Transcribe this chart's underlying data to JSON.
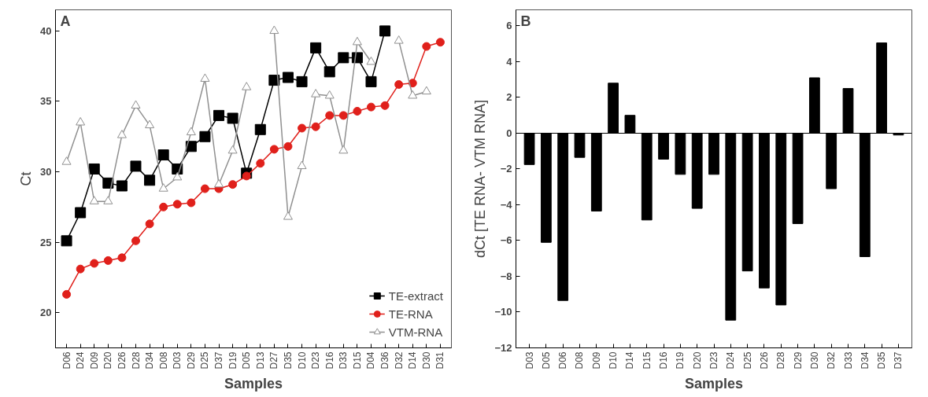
{
  "chart_data": [
    {
      "type": "line",
      "xlabel": "Samples",
      "ylabel": "Ct",
      "annotations": [
        "A"
      ],
      "categories": [
        "D06",
        "D24",
        "D09",
        "D20",
        "D26",
        "D28",
        "D34",
        "D08",
        "D03",
        "D29",
        "D25",
        "D37",
        "D19",
        "D05",
        "D13",
        "D27",
        "D35",
        "D10",
        "D23",
        "D16",
        "D33",
        "D15",
        "D04",
        "D36",
        "D32",
        "D14",
        "D30",
        "D31"
      ],
      "series": [
        {
          "name": "TE-extract",
          "color": "#000000",
          "marker": "square",
          "values": [
            25.1,
            27.1,
            30.2,
            29.2,
            29.0,
            30.4,
            29.4,
            31.2,
            30.2,
            31.8,
            32.5,
            34.0,
            33.8,
            29.9,
            33.0,
            36.5,
            36.7,
            36.4,
            38.8,
            37.1,
            38.1,
            38.1,
            36.4,
            40.0,
            null,
            null,
            null,
            null
          ]
        },
        {
          "name": "TE-RNA",
          "color": "#e0201b",
          "marker": "circle",
          "values": [
            21.3,
            23.1,
            23.5,
            23.7,
            23.9,
            25.1,
            26.3,
            27.5,
            27.7,
            27.8,
            28.8,
            28.8,
            29.1,
            29.7,
            30.6,
            31.6,
            31.8,
            33.1,
            33.2,
            34.0,
            34.0,
            34.3,
            34.6,
            34.7,
            36.2,
            36.3,
            38.9,
            39.2
          ]
        },
        {
          "name": "VTM-RNA",
          "color": "#909090",
          "marker": "triangle",
          "values": [
            30.7,
            33.5,
            27.9,
            27.9,
            32.6,
            34.7,
            33.3,
            28.8,
            29.6,
            32.8,
            36.6,
            29.1,
            31.5,
            36.0,
            null,
            40.0,
            26.8,
            30.4,
            35.5,
            35.4,
            31.5,
            39.2,
            37.8,
            null,
            39.3,
            35.4,
            35.7,
            null
          ]
        }
      ],
      "ylim": [
        17.5,
        41.5
      ],
      "yticks": [
        20,
        25,
        30,
        35,
        40
      ],
      "legend": "bottom right",
      "grid": false
    },
    {
      "type": "bar",
      "xlabel": "Samples",
      "ylabel": "dCt [TE RNA- VTM RNA]",
      "annotations": [
        "B"
      ],
      "categories": [
        "D03",
        "D05",
        "D06",
        "D08",
        "D09",
        "D10",
        "D14",
        "D15",
        "D16",
        "D19",
        "D20",
        "D23",
        "D24",
        "D25",
        "D26",
        "D28",
        "D29",
        "D30",
        "D32",
        "D33",
        "D34",
        "D35",
        "D37"
      ],
      "values": [
        -1.75,
        -6.1,
        -9.35,
        -1.35,
        -4.35,
        2.8,
        1.0,
        -4.85,
        -1.45,
        -2.3,
        -4.2,
        -2.3,
        -10.45,
        -7.7,
        -8.65,
        -9.6,
        -5.05,
        3.1,
        -3.1,
        2.5,
        -6.9,
        5.05,
        -0.1
      ],
      "color": "#000000",
      "ylim": [
        -12,
        6.9
      ],
      "yticks": [
        -12,
        -10,
        -8,
        -6,
        -4,
        -2,
        0,
        2,
        4,
        6
      ],
      "ref_lines": [
        {
          "axis": "y",
          "value": 0,
          "color": "#000000"
        }
      ],
      "grid": false
    }
  ]
}
